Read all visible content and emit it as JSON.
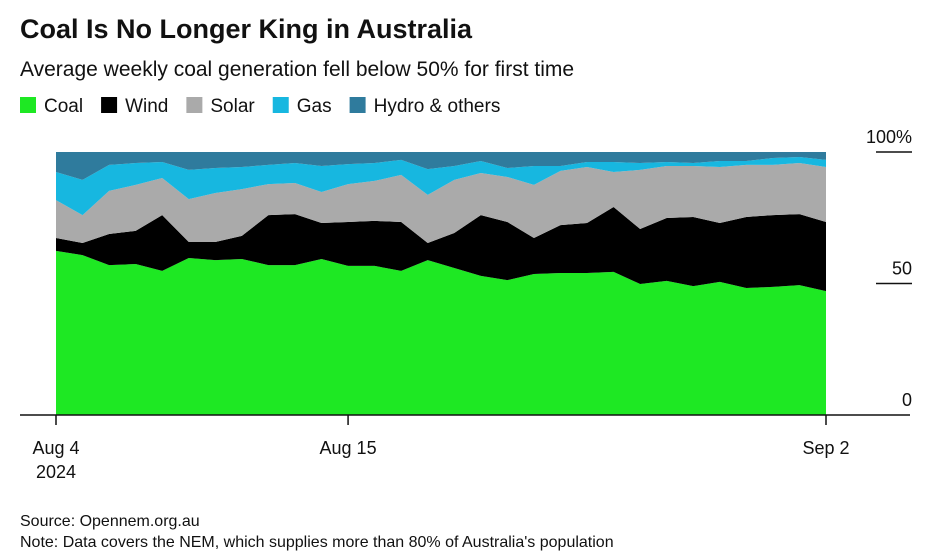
{
  "chart_data": {
    "type": "stacked_area",
    "title": "Coal Is No Longer King in Australia",
    "subtitle": "Average weekly coal generation fell below 50% for first time",
    "source": "Source: Opennem.org.au",
    "note": "Note: Data covers the NEM, which supplies more than 80% of Australia's population",
    "x": [
      "2024-08-04",
      "2024-08-05",
      "2024-08-06",
      "2024-08-07",
      "2024-08-08",
      "2024-08-09",
      "2024-08-10",
      "2024-08-11",
      "2024-08-12",
      "2024-08-13",
      "2024-08-14",
      "2024-08-15",
      "2024-08-16",
      "2024-08-17",
      "2024-08-18",
      "2024-08-19",
      "2024-08-20",
      "2024-08-21",
      "2024-08-22",
      "2024-08-23",
      "2024-08-24",
      "2024-08-25",
      "2024-08-26",
      "2024-08-27",
      "2024-08-28",
      "2024-08-29",
      "2024-08-30",
      "2024-08-31",
      "2024-09-01",
      "2024-09-02"
    ],
    "xlim": [
      "2024-08-04",
      "2024-09-02"
    ],
    "xticks": [
      {
        "value": "2024-08-04",
        "label": "Aug 4"
      },
      {
        "value": "2024-08-15",
        "label": "Aug 15"
      },
      {
        "value": "2024-09-02",
        "label": "Sep 2"
      }
    ],
    "xtick_year": "2024",
    "ylim": [
      0,
      100
    ],
    "yticks": [
      0,
      50,
      {
        "value": 100,
        "label": "100%"
      }
    ],
    "legend": "top-left",
    "series": [
      {
        "name": "Coal",
        "color": "#1ee823",
        "values": [
          62.4,
          60.8,
          57.0,
          57.4,
          54.8,
          59.7,
          58.9,
          59.3,
          57.0,
          57.0,
          59.3,
          56.7,
          56.7,
          54.8,
          58.9,
          55.9,
          52.9,
          51.3,
          53.6,
          54.0,
          54.0,
          54.4,
          49.8,
          51.0,
          49.0,
          50.6,
          48.3,
          48.7,
          49.4,
          47.1
        ]
      },
      {
        "name": "Wind",
        "color": "#000000",
        "values": [
          4.9,
          4.6,
          11.8,
          12.6,
          21.2,
          6.1,
          6.9,
          8.8,
          19.0,
          19.4,
          13.7,
          16.7,
          17.1,
          18.6,
          6.5,
          13.3,
          23.1,
          22.1,
          13.7,
          18.2,
          19.0,
          24.7,
          20.9,
          23.9,
          26.3,
          22.4,
          27.0,
          27.3,
          27.0,
          26.3
        ]
      },
      {
        "name": "Solar",
        "color": "#aaaaaa",
        "values": [
          14.4,
          10.6,
          16.4,
          17.5,
          14.1,
          16.3,
          18.6,
          17.8,
          11.8,
          11.8,
          11.8,
          14.4,
          15.2,
          17.9,
          18.3,
          20.2,
          16.0,
          17.1,
          20.2,
          20.6,
          21.3,
          13.3,
          22.5,
          19.8,
          19.4,
          21.3,
          19.8,
          19.1,
          19.4,
          20.9
        ]
      },
      {
        "name": "Gas",
        "color": "#17b7e0",
        "values": [
          10.7,
          13.4,
          9.9,
          8.3,
          6.1,
          11.1,
          9.5,
          8.4,
          7.3,
          7.6,
          9.9,
          7.6,
          6.8,
          5.7,
          9.8,
          5.3,
          4.6,
          3.4,
          7.2,
          1.9,
          1.9,
          3.8,
          2.6,
          1.5,
          1.1,
          2.3,
          1.5,
          2.6,
          2.3,
          2.7
        ]
      },
      {
        "name": "Hydro & others",
        "color": "#2f7b9d",
        "values": [
          7.6,
          10.6,
          4.9,
          4.2,
          3.8,
          6.8,
          6.1,
          5.7,
          4.9,
          4.2,
          5.3,
          4.6,
          4.2,
          3.0,
          6.5,
          5.3,
          3.4,
          6.1,
          5.3,
          5.3,
          3.8,
          3.8,
          4.2,
          3.8,
          4.2,
          3.4,
          3.4,
          2.3,
          1.9,
          3.0
        ]
      }
    ]
  }
}
